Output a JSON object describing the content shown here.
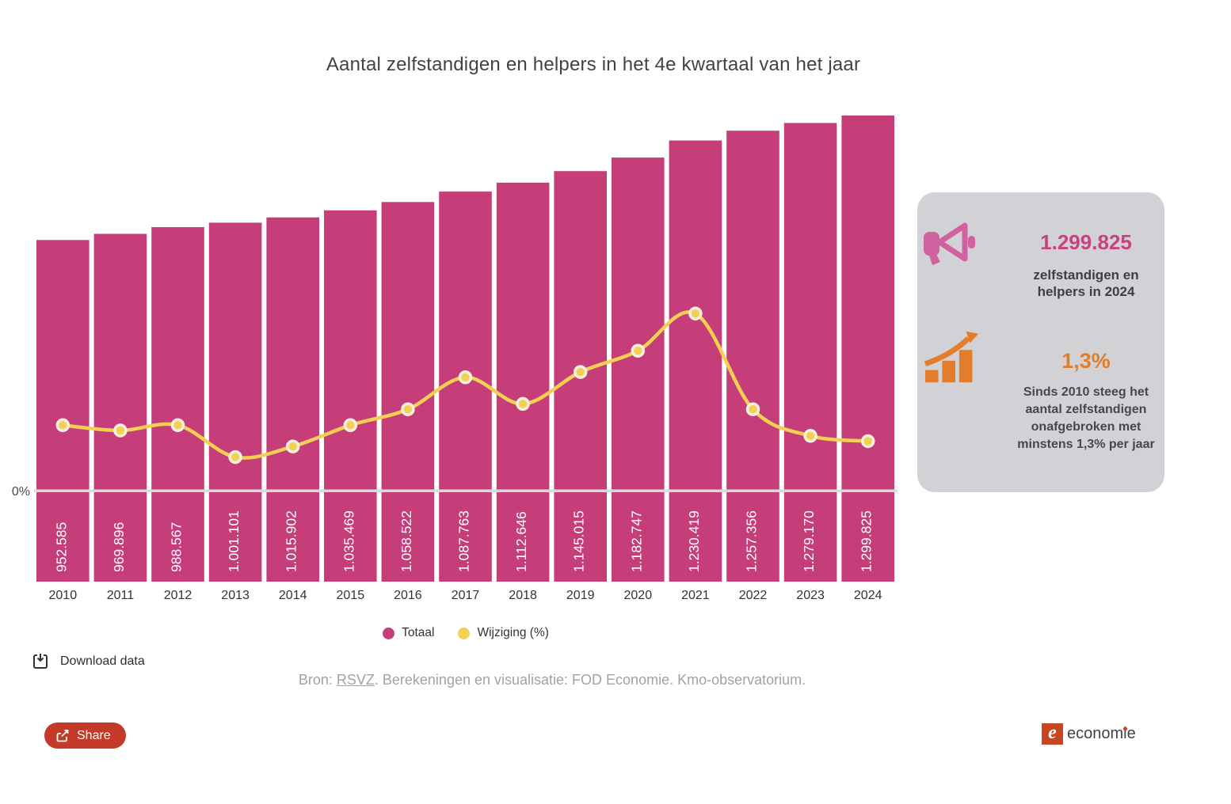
{
  "title": "Aantal zelfstandigen en helpers in het 4e kwartaal van het jaar",
  "chart_data": {
    "type": "bar",
    "categories": [
      "2010",
      "2011",
      "2012",
      "2013",
      "2014",
      "2015",
      "2016",
      "2017",
      "2018",
      "2019",
      "2020",
      "2021",
      "2022",
      "2023",
      "2024"
    ],
    "series": [
      {
        "name": "Totaal",
        "type": "bar",
        "color": "#c63e79",
        "values": [
          952585,
          969896,
          988567,
          1001101,
          1015902,
          1035469,
          1058522,
          1087763,
          1112646,
          1145015,
          1182747,
          1230419,
          1257356,
          1279170,
          1299825
        ]
      },
      {
        "name": "Wijziging (%)",
        "type": "line",
        "color": "#f4d052",
        "values": [
          1.9,
          1.8,
          1.9,
          1.3,
          1.5,
          1.9,
          2.2,
          2.8,
          2.3,
          2.9,
          3.3,
          4.0,
          2.2,
          1.7,
          1.6
        ]
      }
    ],
    "bar_labels": [
      "952.585",
      "969.896",
      "988.567",
      "1.001.101",
      "1.015.902",
      "1.035.469",
      "1.058.522",
      "1.087.763",
      "1.112.646",
      "1.145.015",
      "1.182.747",
      "1.230.419",
      "1.257.356",
      "1.279.170",
      "1.299.825"
    ],
    "zero_tick": "0%",
    "title": "Aantal zelfstandigen en helpers in het 4e kwartaal van het jaar",
    "legend_position": "bottom",
    "grid": false
  },
  "legend": [
    {
      "label": "Totaal",
      "color": "#c63e79"
    },
    {
      "label": "Wijziging (%)",
      "color": "#f4d052"
    }
  ],
  "panel": {
    "stat1": {
      "value": "1.299.825",
      "label": "zelfstandigen en helpers in 2024",
      "accent_color": "#c9417f"
    },
    "stat2": {
      "value": "1,3%",
      "label": "Sinds 2010 steeg het aantal zelfstandigen onafgebroken met minstens 1,3% per jaar",
      "accent_color": "#e07d2b"
    }
  },
  "footer": {
    "download_label": "Download data",
    "source_prefix": "Bron: ",
    "source_link": "RSVZ",
    "source_suffix": ". Berekeningen en visualisatie: FOD Economie. Kmo-observatorium.",
    "share_label": "Share",
    "share_color": "#c43a28",
    "logo_part1": "econom",
    "logo_i": "i",
    "logo_part3": "e"
  }
}
